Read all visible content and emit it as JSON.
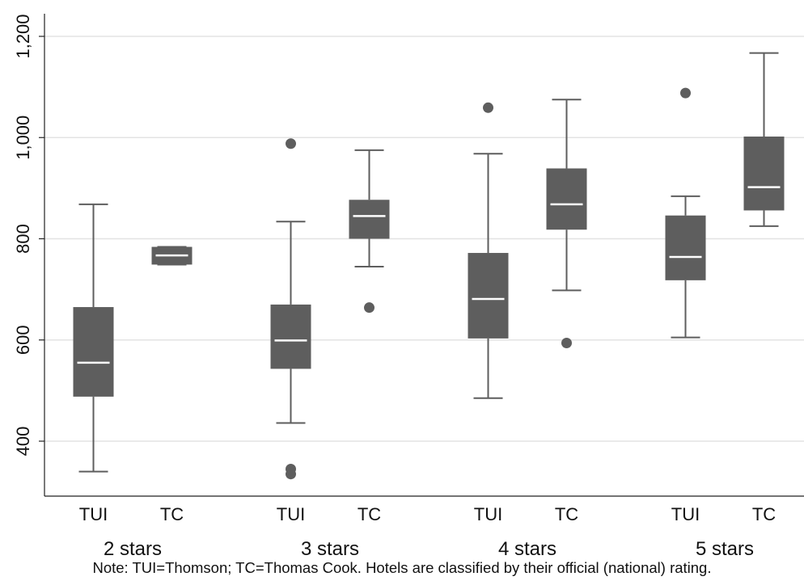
{
  "chart_data": {
    "type": "box",
    "ylim": [
      300,
      1200
    ],
    "yticks": [
      400,
      600,
      800,
      1000,
      1200
    ],
    "ytick_labels": [
      "400",
      "600",
      "800",
      "1,000",
      "1,200"
    ],
    "grid": true,
    "box_color": "#5e5e5e",
    "median_color": "#ffffff",
    "groups": [
      {
        "label": "2 stars",
        "boxes": [
          {
            "label": "TUI",
            "whisker_low": 340,
            "q1": 488,
            "median": 555,
            "q3": 665,
            "whisker_high": 868,
            "outliers": []
          },
          {
            "label": "TC",
            "whisker_low": 749,
            "q1": 749,
            "median": 767,
            "q3": 784,
            "whisker_high": 784,
            "outliers": []
          }
        ]
      },
      {
        "label": "3 stars",
        "boxes": [
          {
            "label": "TUI",
            "whisker_low": 436,
            "q1": 543,
            "median": 599,
            "q3": 670,
            "whisker_high": 834,
            "outliers": [
              988,
              345,
              335
            ]
          },
          {
            "label": "TC",
            "whisker_low": 745,
            "q1": 800,
            "median": 845,
            "q3": 877,
            "whisker_high": 975,
            "outliers": [
              664
            ]
          }
        ]
      },
      {
        "label": "4 stars",
        "boxes": [
          {
            "label": "TUI",
            "whisker_low": 485,
            "q1": 603,
            "median": 681,
            "q3": 772,
            "whisker_high": 968,
            "outliers": [
              1059
            ]
          },
          {
            "label": "TC",
            "whisker_low": 698,
            "q1": 818,
            "median": 868,
            "q3": 939,
            "whisker_high": 1075,
            "outliers": [
              594
            ]
          }
        ]
      },
      {
        "label": "5 stars",
        "boxes": [
          {
            "label": "TUI",
            "whisker_low": 605,
            "q1": 718,
            "median": 764,
            "q3": 846,
            "whisker_high": 884,
            "outliers": [
              1088
            ]
          },
          {
            "label": "TC",
            "whisker_low": 825,
            "q1": 856,
            "median": 902,
            "q3": 1002,
            "whisker_high": 1167,
            "outliers": []
          }
        ]
      }
    ]
  },
  "note": "Note: TUI=Thomson; TC=Thomas Cook. Hotels are classified by their official (national) rating."
}
